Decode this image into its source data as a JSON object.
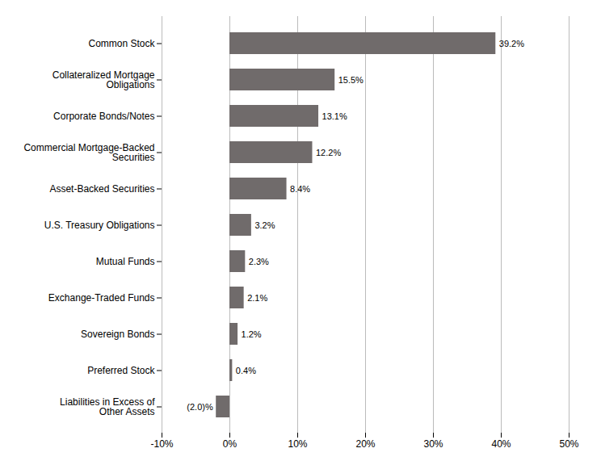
{
  "chart_data": {
    "type": "bar",
    "orientation": "horizontal",
    "categories": [
      "Common Stock",
      "Collateralized Mortgage\nObligations",
      "Corporate Bonds/Notes",
      "Commercial Mortgage-Backed\nSecurities",
      "Asset-Backed Securities",
      "U.S. Treasury Obligations",
      "Mutual Funds",
      "Exchange-Traded Funds",
      "Sovereign Bonds",
      "Preferred Stock",
      "Liabilities in Excess of\nOther Assets"
    ],
    "values": [
      39.2,
      15.5,
      13.1,
      12.2,
      8.4,
      3.2,
      2.3,
      2.1,
      1.2,
      0.4,
      -2.0
    ],
    "value_labels": [
      "39.2%",
      "15.5%",
      "13.1%",
      "12.2%",
      "8.4%",
      "3.2%",
      "2.3%",
      "2.1%",
      "1.2%",
      "0.4%",
      "(2.0)%"
    ],
    "data_labels": true,
    "color": "#706b6b",
    "xlim": [
      -10,
      50
    ],
    "xticks": [
      {
        "value": -10,
        "label": "-10%"
      },
      {
        "value": 0,
        "label": "0%"
      },
      {
        "value": 10,
        "label": "10%"
      },
      {
        "value": 20,
        "label": "20%"
      },
      {
        "value": 30,
        "label": "30%"
      },
      {
        "value": 40,
        "label": "40%"
      },
      {
        "value": 50,
        "label": "50%"
      }
    ],
    "grid": true
  }
}
